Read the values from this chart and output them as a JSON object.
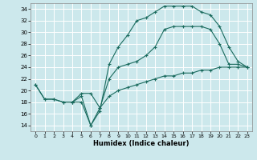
{
  "xlabel": "Humidex (Indice chaleur)",
  "bg_color": "#cce8ec",
  "grid_color": "#ffffff",
  "line_color": "#1a6b5e",
  "xlim": [
    -0.5,
    23.5
  ],
  "ylim": [
    13,
    35
  ],
  "xticks": [
    0,
    1,
    2,
    3,
    4,
    5,
    6,
    7,
    8,
    9,
    10,
    11,
    12,
    13,
    14,
    15,
    16,
    17,
    18,
    19,
    20,
    21,
    22,
    23
  ],
  "yticks": [
    14,
    16,
    18,
    20,
    22,
    24,
    26,
    28,
    30,
    32,
    34
  ],
  "line1_x": [
    0,
    1,
    2,
    3,
    4,
    5,
    6,
    7,
    8,
    9,
    10,
    11,
    12,
    13,
    14,
    15,
    16,
    17,
    18,
    19,
    20,
    21,
    22,
    23
  ],
  "line1_y": [
    21,
    18.5,
    18.5,
    18,
    18,
    18,
    14,
    17,
    19,
    20,
    20.5,
    21,
    21.5,
    22,
    22.5,
    22.5,
    23,
    23,
    23.5,
    23.5,
    24,
    24,
    24,
    24
  ],
  "line2_x": [
    0,
    1,
    2,
    3,
    4,
    5,
    6,
    7,
    8,
    9,
    10,
    11,
    12,
    13,
    14,
    15,
    16,
    17,
    18,
    19,
    20,
    21,
    22,
    23
  ],
  "line2_y": [
    21,
    18.5,
    18.5,
    18,
    18,
    19,
    14,
    16.5,
    24.5,
    27.5,
    29.5,
    32,
    32.5,
    33.5,
    34.5,
    34.5,
    34.5,
    34.5,
    33.5,
    33,
    31,
    27.5,
    25,
    24
  ],
  "line3_x": [
    4,
    5,
    6,
    7,
    8,
    9,
    10,
    11,
    12,
    13,
    14,
    15,
    16,
    17,
    18,
    19,
    20,
    21,
    22,
    23
  ],
  "line3_y": [
    18,
    19.5,
    19.5,
    17,
    22,
    24,
    24.5,
    25,
    26,
    27.5,
    30.5,
    31,
    31,
    31,
    31,
    30.5,
    28,
    24.5,
    24.5,
    24
  ]
}
